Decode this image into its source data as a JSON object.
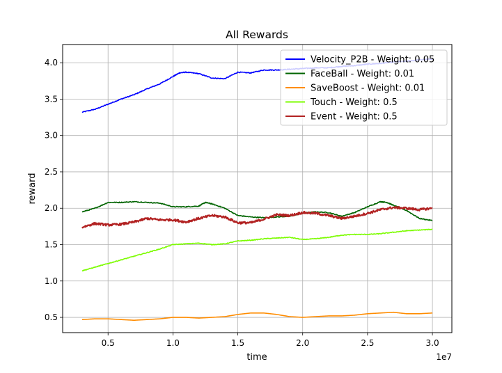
{
  "chart_data": {
    "type": "line",
    "title": "All Rewards",
    "xlabel": "time",
    "ylabel": "reward",
    "x_offset_text": "1e7",
    "xlim": [
      0.15,
      3.15
    ],
    "ylim": [
      0.29,
      4.25
    ],
    "xticks": [
      0.5,
      1.0,
      1.5,
      2.0,
      2.5,
      3.0
    ],
    "xtick_labels": [
      "0.5",
      "1.0",
      "1.5",
      "2.0",
      "2.5",
      "3.0"
    ],
    "yticks": [
      0.5,
      1.0,
      1.5,
      2.0,
      2.5,
      3.0,
      3.5,
      4.0
    ],
    "ytick_labels": [
      "0.5",
      "1.0",
      "1.5",
      "2.0",
      "2.5",
      "3.0",
      "3.5",
      "4.0"
    ],
    "grid": true,
    "legend_position": "upper right",
    "series": [
      {
        "name": "Velocity_P2B - Weight: 0.05",
        "color": "#0000ff",
        "noise": 0.006,
        "x": [
          0.3,
          0.4,
          0.5,
          0.6,
          0.7,
          0.8,
          0.9,
          1.0,
          1.05,
          1.1,
          1.2,
          1.3,
          1.4,
          1.5,
          1.6,
          1.7,
          1.8,
          1.9,
          2.0,
          2.1,
          2.2,
          2.3,
          2.4,
          2.5,
          2.6,
          2.7,
          2.8,
          2.9,
          3.0
        ],
        "y": [
          3.32,
          3.36,
          3.43,
          3.5,
          3.56,
          3.64,
          3.71,
          3.81,
          3.86,
          3.87,
          3.85,
          3.79,
          3.78,
          3.87,
          3.86,
          3.9,
          3.9,
          3.91,
          3.92,
          3.93,
          3.93,
          3.95,
          3.96,
          3.98,
          3.99,
          4.01,
          4.02,
          4.04,
          4.05
        ]
      },
      {
        "name": "FaceBall - Weight: 0.01",
        "color": "#006400",
        "noise": 0.006,
        "x": [
          0.3,
          0.4,
          0.5,
          0.6,
          0.7,
          0.8,
          0.9,
          1.0,
          1.1,
          1.2,
          1.25,
          1.3,
          1.4,
          1.5,
          1.6,
          1.7,
          1.8,
          1.9,
          2.0,
          2.1,
          2.2,
          2.3,
          2.4,
          2.5,
          2.6,
          2.65,
          2.7,
          2.8,
          2.9,
          3.0
        ],
        "y": [
          1.95,
          2.0,
          2.08,
          2.08,
          2.09,
          2.08,
          2.07,
          2.02,
          2.02,
          2.03,
          2.08,
          2.06,
          2.0,
          1.9,
          1.88,
          1.87,
          1.88,
          1.89,
          1.93,
          1.95,
          1.94,
          1.89,
          1.94,
          2.02,
          2.09,
          2.08,
          2.04,
          1.97,
          1.86,
          1.83
        ]
      },
      {
        "name": "SaveBoost - Weight: 0.01",
        "color": "#ff8c00",
        "noise": 0.0,
        "x": [
          0.3,
          0.4,
          0.5,
          0.6,
          0.7,
          0.8,
          0.9,
          1.0,
          1.1,
          1.2,
          1.3,
          1.4,
          1.5,
          1.6,
          1.7,
          1.8,
          1.9,
          2.0,
          2.1,
          2.2,
          2.3,
          2.4,
          2.5,
          2.6,
          2.7,
          2.8,
          2.9,
          3.0
        ],
        "y": [
          0.47,
          0.48,
          0.48,
          0.47,
          0.46,
          0.47,
          0.48,
          0.5,
          0.5,
          0.49,
          0.5,
          0.51,
          0.54,
          0.56,
          0.56,
          0.54,
          0.51,
          0.5,
          0.51,
          0.52,
          0.52,
          0.53,
          0.55,
          0.56,
          0.57,
          0.55,
          0.55,
          0.56
        ]
      },
      {
        "name": "Touch - Weight: 0.5",
        "color": "#7cfc00",
        "noise": 0.005,
        "x": [
          0.3,
          0.4,
          0.5,
          0.6,
          0.7,
          0.8,
          0.9,
          1.0,
          1.1,
          1.2,
          1.3,
          1.4,
          1.5,
          1.6,
          1.7,
          1.8,
          1.9,
          2.0,
          2.1,
          2.2,
          2.3,
          2.4,
          2.5,
          2.6,
          2.7,
          2.8,
          2.9,
          3.0
        ],
        "y": [
          1.14,
          1.19,
          1.24,
          1.29,
          1.34,
          1.39,
          1.44,
          1.5,
          1.51,
          1.52,
          1.5,
          1.51,
          1.55,
          1.56,
          1.58,
          1.59,
          1.6,
          1.57,
          1.58,
          1.6,
          1.63,
          1.64,
          1.64,
          1.65,
          1.67,
          1.69,
          1.7,
          1.71
        ]
      },
      {
        "name": "Event - Weight: 0.5",
        "color": "#b22222",
        "noise": 0.015,
        "x": [
          0.3,
          0.4,
          0.5,
          0.6,
          0.7,
          0.8,
          0.9,
          1.0,
          1.1,
          1.2,
          1.3,
          1.4,
          1.5,
          1.6,
          1.7,
          1.8,
          1.9,
          2.0,
          2.1,
          2.2,
          2.3,
          2.4,
          2.5,
          2.6,
          2.7,
          2.8,
          2.9,
          3.0
        ],
        "y": [
          1.74,
          1.79,
          1.77,
          1.78,
          1.81,
          1.86,
          1.84,
          1.84,
          1.81,
          1.86,
          1.9,
          1.88,
          1.8,
          1.8,
          1.85,
          1.91,
          1.9,
          1.94,
          1.93,
          1.9,
          1.86,
          1.89,
          1.93,
          1.98,
          2.01,
          2.0,
          1.98,
          2.0
        ]
      }
    ]
  }
}
